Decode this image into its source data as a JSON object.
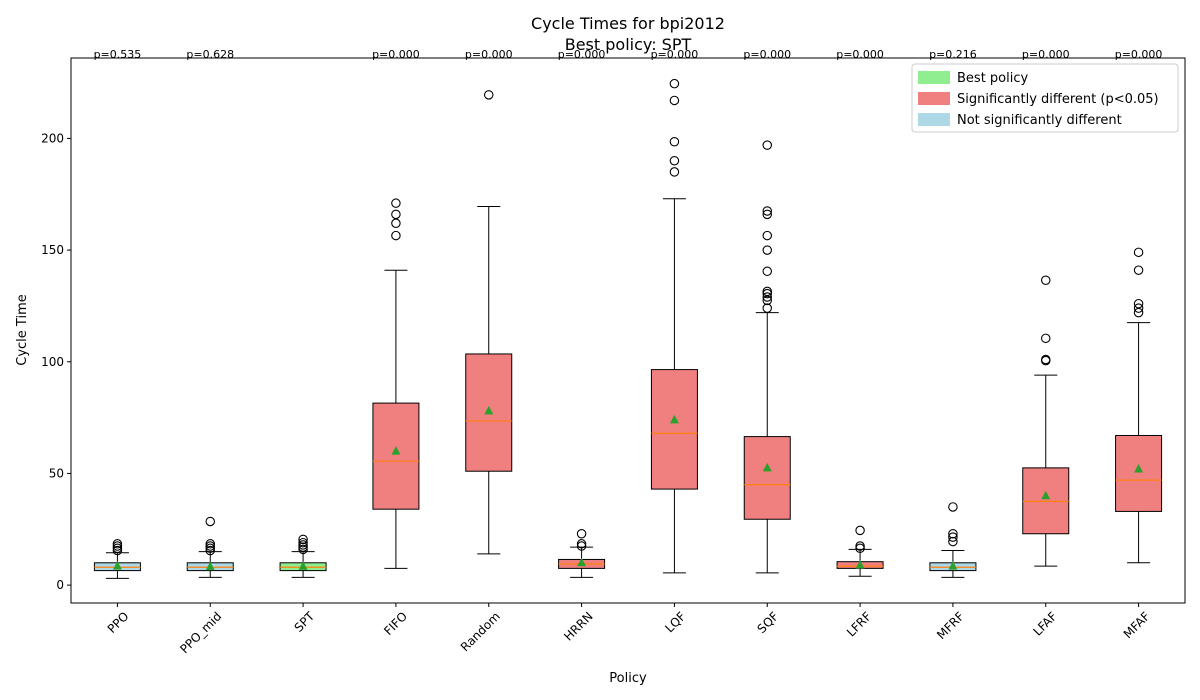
{
  "chart_data": {
    "type": "box",
    "title": "Cycle Times for bpi2012",
    "subtitle": "Best policy: SPT",
    "xlabel": "Policy",
    "ylabel": "Cycle Time",
    "ylim": [
      -8,
      236
    ],
    "yticks": [
      0,
      50,
      100,
      150,
      200
    ],
    "grid": false,
    "legend_position": "top-right",
    "legend": [
      {
        "label": "Best policy",
        "color": "#90ee90"
      },
      {
        "label": "Significantly different (p<0.05)",
        "color": "#f08080"
      },
      {
        "label": "Not significantly different",
        "color": "#add8e6"
      }
    ],
    "median_color": "#ff7f0e",
    "mean_color": "#2ca02c",
    "categories": [
      "PPO",
      "PPO_mid",
      "SPT",
      "FIFO",
      "Random",
      "HRRN",
      "LQF",
      "SQF",
      "LFRF",
      "MFRF",
      "LFAF",
      "MFAF"
    ],
    "boxes": [
      {
        "label": "PPO",
        "p": "p=0.535",
        "status": "not_significant",
        "whislo": 3,
        "q1": 6.5,
        "median": 8,
        "q3": 10,
        "whishi": 14.5,
        "mean": 8.5,
        "fliers": [
          15.5,
          16.5,
          17.5,
          18.5
        ]
      },
      {
        "label": "PPO_mid",
        "p": "p=0.628",
        "status": "not_significant",
        "whislo": 3.5,
        "q1": 6.5,
        "median": 8,
        "q3": 10,
        "whishi": 15,
        "mean": 8.3,
        "fliers": [
          15.5,
          16.5,
          17.5,
          18.5,
          28.5
        ]
      },
      {
        "label": "SPT",
        "p": "",
        "status": "best",
        "whislo": 3.5,
        "q1": 6.5,
        "median": 8,
        "q3": 10,
        "whishi": 15,
        "mean": 8.4,
        "fliers": [
          16,
          17,
          18,
          19,
          20.5
        ]
      },
      {
        "label": "FIFO",
        "p": "p=0.000",
        "status": "significant",
        "whislo": 7.5,
        "q1": 34,
        "median": 55.5,
        "q3": 81.5,
        "whishi": 141,
        "mean": 60,
        "fliers": [
          156.5,
          162,
          166,
          171
        ]
      },
      {
        "label": "Random",
        "p": "p=0.000",
        "status": "significant",
        "whislo": 14,
        "q1": 51,
        "median": 73.5,
        "q3": 103.5,
        "whishi": 169.5,
        "mean": 78,
        "fliers": [
          219.5
        ]
      },
      {
        "label": "HRRN",
        "p": "p=0.000",
        "status": "significant",
        "whislo": 3.5,
        "q1": 7.5,
        "median": 9.5,
        "q3": 11.5,
        "whishi": 17,
        "mean": 10,
        "fliers": [
          17.5,
          18.5,
          23
        ]
      },
      {
        "label": "LQF",
        "p": "p=0.000",
        "status": "significant",
        "whislo": 5.5,
        "q1": 43,
        "median": 68,
        "q3": 96.5,
        "whishi": 173,
        "mean": 74,
        "fliers": [
          185,
          190,
          198.5,
          217,
          224.5
        ]
      },
      {
        "label": "SQF",
        "p": "p=0.000",
        "status": "significant",
        "whislo": 5.5,
        "q1": 29.5,
        "median": 45,
        "q3": 66.5,
        "whishi": 122,
        "mean": 52.5,
        "fliers": [
          124,
          127.5,
          129,
          130.5,
          131.5,
          140.5,
          150,
          156.5,
          166,
          167.5,
          197
        ]
      },
      {
        "label": "LFRF",
        "p": "p=0.000",
        "status": "significant",
        "whislo": 4,
        "q1": 7.5,
        "median": 8.5,
        "q3": 10.5,
        "whishi": 16,
        "mean": 9,
        "fliers": [
          16.5,
          17.5,
          24.5
        ]
      },
      {
        "label": "MFRF",
        "p": "p=0.216",
        "status": "not_significant",
        "whislo": 3.5,
        "q1": 6.5,
        "median": 8,
        "q3": 10,
        "whishi": 15.5,
        "mean": 8.5,
        "fliers": [
          19.5,
          21.5,
          23,
          35
        ]
      },
      {
        "label": "LFAF",
        "p": "p=0.000",
        "status": "significant",
        "whislo": 8.5,
        "q1": 23,
        "median": 37.5,
        "q3": 52.5,
        "whishi": 94,
        "mean": 40,
        "fliers": [
          100.5,
          101,
          110.5,
          136.5
        ]
      },
      {
        "label": "MFAF",
        "p": "p=0.000",
        "status": "significant",
        "whislo": 10,
        "q1": 33,
        "median": 47,
        "q3": 67,
        "whishi": 117.5,
        "mean": 52,
        "fliers": [
          122,
          124,
          126,
          141,
          149
        ]
      }
    ]
  }
}
